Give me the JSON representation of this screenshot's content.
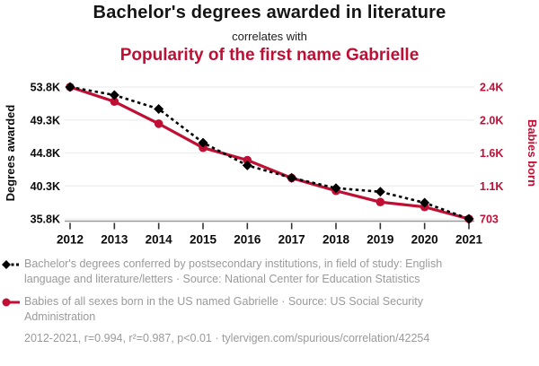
{
  "header": {
    "title1": "Bachelor's degrees awarded in literature",
    "connector": "correlates with",
    "title2": "Popularity of the first name Gabrielle"
  },
  "colors": {
    "accent_red": "#c00f35",
    "series_black": "#000000",
    "legend_gray": "#9a9a9a",
    "grid_gray": "#ededed",
    "axis_line_gray": "#999999"
  },
  "chart_data": {
    "type": "line",
    "x": [
      2012,
      2013,
      2014,
      2015,
      2016,
      2017,
      2018,
      2019,
      2020,
      2021
    ],
    "series": [
      {
        "name": "Bachelor's degrees conferred by postsecondary institutions, in field of study: English language and literature/letters",
        "axis": "left",
        "color": "#000000",
        "style": "dashed",
        "marker": "diamond",
        "values": [
          53800,
          52700,
          50800,
          46200,
          43100,
          41400,
          40000,
          39500,
          38000,
          35800
        ]
      },
      {
        "name": "Babies of all sexes born in the US named Gabrielle",
        "axis": "right",
        "color": "#c00f35",
        "style": "solid",
        "marker": "circle",
        "values": [
          2403,
          2215,
          1930,
          1620,
          1460,
          1230,
          1065,
          920,
          857,
          703
        ]
      }
    ],
    "left_axis": {
      "label": "Degrees awarded",
      "min": 35800,
      "max": 53800,
      "ticks": [
        "53.8K",
        "49.3K",
        "44.8K",
        "40.3K",
        "35.8K"
      ]
    },
    "right_axis": {
      "label": "Babies born",
      "min": 703,
      "max": 2403,
      "ticks": [
        "2.4K",
        "2.0K",
        "1.6K",
        "1.1K",
        "703"
      ]
    },
    "grid": "horizontal-only",
    "legend_position": "below"
  },
  "legend": {
    "series1": "Bachelor's degrees conferred by postsecondary institutions, in field of study: English language and literature/letters · Source: National Center for Education Statistics",
    "series2": "Babies of all sexes born in the US named Gabrielle · Source: US Social Security Administration"
  },
  "footer": {
    "stats": "2012-2021, r=0.994, r²=0.987, p<0.01 · tylervigen.com/spurious/correlation/42254"
  }
}
